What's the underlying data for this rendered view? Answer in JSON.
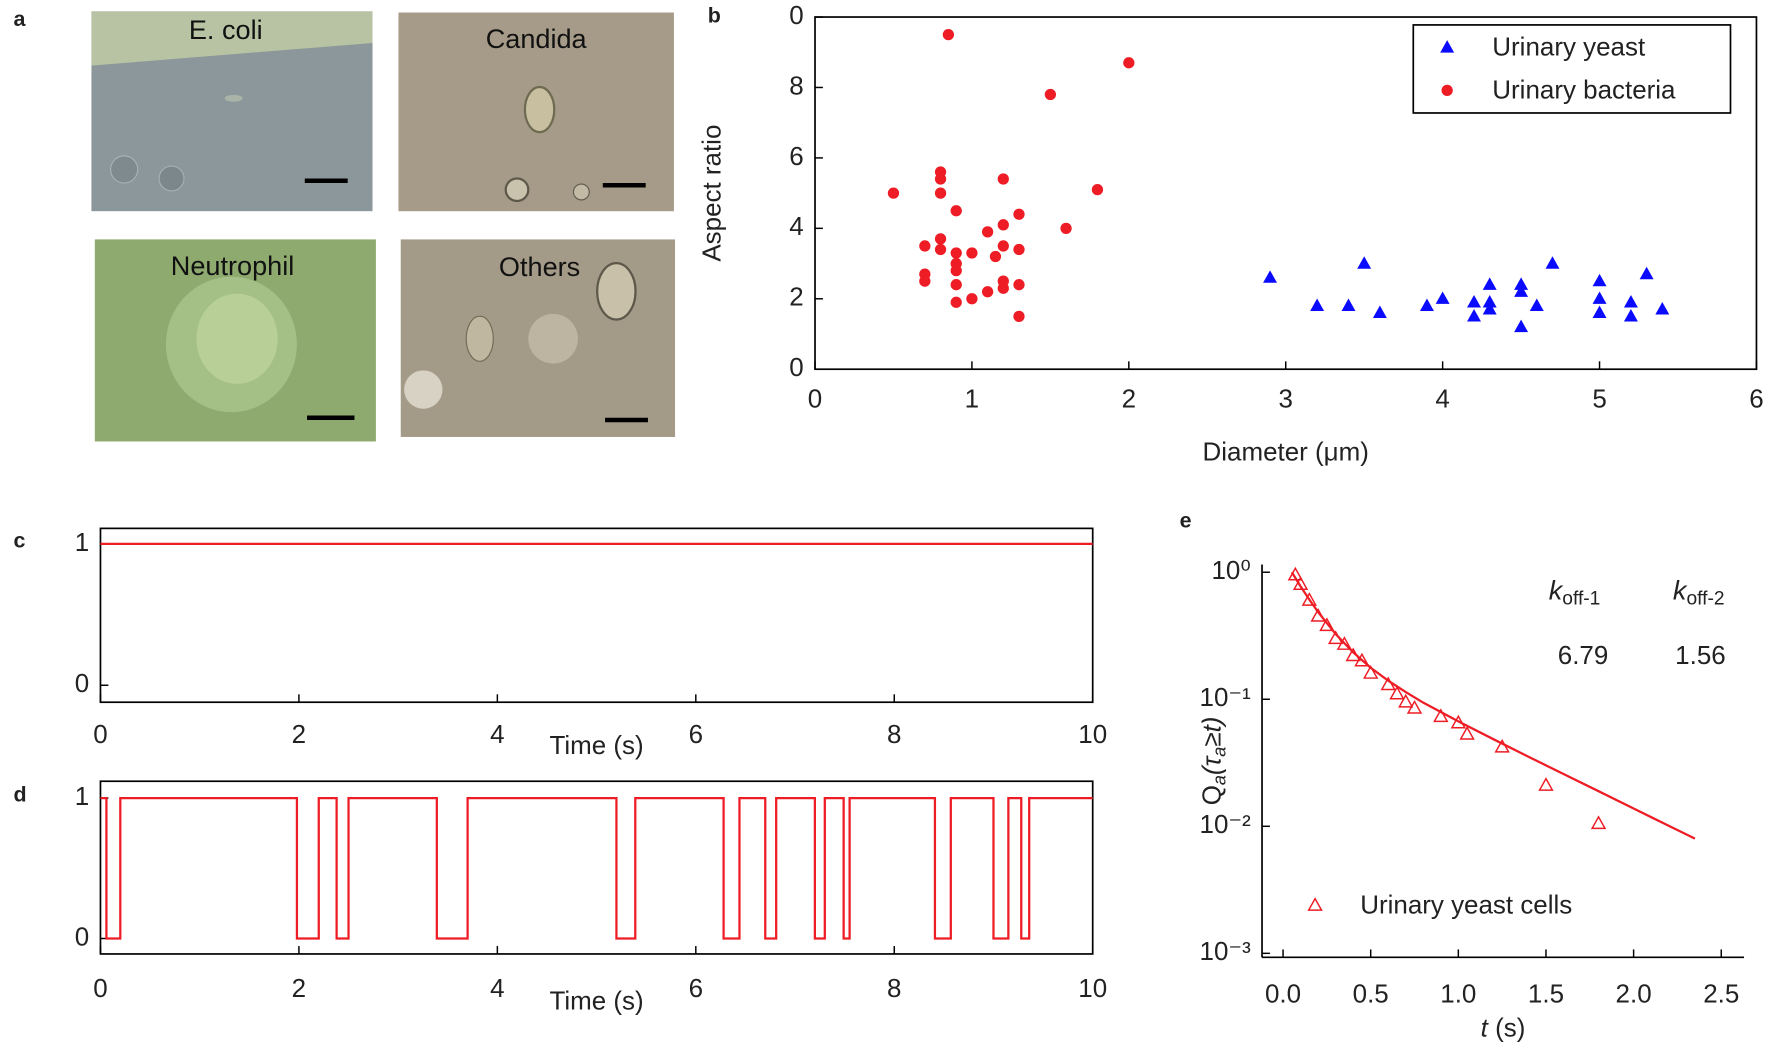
{
  "figure_a": {
    "panel": "a",
    "images": [
      "E. coli",
      "Candida",
      "Neutrophil",
      "Others"
    ]
  },
  "chart_data": [
    {
      "type": "scatter",
      "panel": "b",
      "xlabel": "Diameter (μm)",
      "ylabel": "Aspect ratio",
      "xlim": [
        0,
        6
      ],
      "xticks": [
        0,
        1,
        2,
        3,
        4,
        5,
        6
      ],
      "ylim": [
        0,
        10
      ],
      "yticks": [
        0,
        2,
        4,
        6,
        8,
        {
          "value": 10,
          "label": "0"
        }
      ],
      "legend": "upper right",
      "series": [
        {
          "name": "Urinary yeast",
          "color": "#0a0aff",
          "marker": "triangle",
          "filled": true,
          "x": [
            2.9,
            3.2,
            3.4,
            3.5,
            3.6,
            3.9,
            4.0,
            4.2,
            4.2,
            4.3,
            4.3,
            4.3,
            4.5,
            4.5,
            4.5,
            4.6,
            4.7,
            5.0,
            5.0,
            5.0,
            5.2,
            5.2,
            5.3,
            5.4
          ],
          "values": [
            2.6,
            1.8,
            1.8,
            3.0,
            1.6,
            1.8,
            2.0,
            1.9,
            1.5,
            2.4,
            1.9,
            1.7,
            2.4,
            2.2,
            1.2,
            1.8,
            3.0,
            2.5,
            2.0,
            1.6,
            1.9,
            1.5,
            2.7,
            1.7
          ]
        },
        {
          "name": "Urinary bacteria",
          "color": "#ee1c25",
          "marker": "circle",
          "filled": true,
          "x": [
            0.5,
            0.7,
            0.7,
            0.7,
            0.8,
            0.8,
            0.8,
            0.8,
            0.8,
            0.85,
            0.9,
            0.9,
            0.9,
            0.9,
            0.9,
            0.9,
            1.0,
            1.0,
            1.1,
            1.1,
            1.15,
            1.2,
            1.2,
            1.2,
            1.2,
            1.2,
            1.3,
            1.3,
            1.3,
            1.3,
            1.5,
            1.6,
            1.8,
            2.0
          ],
          "values": [
            5.0,
            3.5,
            2.7,
            2.5,
            5.6,
            5.4,
            5.0,
            3.7,
            3.4,
            9.5,
            4.5,
            3.3,
            3.0,
            2.8,
            2.4,
            1.9,
            3.3,
            2.0,
            3.9,
            2.2,
            3.2,
            5.4,
            4.1,
            3.5,
            2.5,
            2.3,
            4.4,
            3.4,
            2.4,
            1.5,
            7.8,
            4.0,
            5.1,
            8.7
          ]
        }
      ]
    },
    {
      "type": "line",
      "panel": "c",
      "xlabel": "Time (s)",
      "xlim": [
        0,
        10
      ],
      "xticks": [
        0,
        2,
        4,
        6,
        8,
        10
      ],
      "ylim": [
        -0.12,
        1.11
      ],
      "yticks": [
        0,
        1
      ],
      "series": [
        {
          "color": "#ee1c25",
          "x": [
            0,
            10
          ],
          "values": [
            1,
            1
          ]
        }
      ]
    },
    {
      "type": "line",
      "panel": "d",
      "xlabel": "Time (s)",
      "xlim": [
        0,
        10
      ],
      "xticks": [
        0,
        2,
        4,
        6,
        8,
        10
      ],
      "ylim": [
        -0.11,
        1.12
      ],
      "yticks": [
        0,
        1
      ],
      "series": [
        {
          "color": "#ee1c25",
          "x": [
            0,
            0.06,
            0.06,
            0.2,
            0.2,
            1.98,
            1.98,
            2.2,
            2.2,
            2.38,
            2.38,
            2.5,
            2.5,
            3.39,
            3.39,
            3.7,
            3.7,
            5.2,
            5.2,
            5.39,
            5.39,
            6.28,
            6.28,
            6.44,
            6.44,
            6.7,
            6.7,
            6.81,
            6.81,
            7.2,
            7.2,
            7.3,
            7.3,
            7.49,
            7.49,
            7.55,
            7.55,
            8.41,
            8.41,
            8.57,
            8.57,
            9.0,
            9.0,
            9.15,
            9.15,
            9.28,
            9.28,
            9.36,
            9.36,
            10
          ],
          "values": [
            1,
            1,
            0,
            0,
            1,
            1,
            0,
            0,
            1,
            1,
            0,
            0,
            1,
            1,
            0,
            0,
            1,
            1,
            0,
            0,
            1,
            1,
            0,
            0,
            1,
            1,
            0,
            0,
            1,
            1,
            0,
            0,
            1,
            1,
            0,
            0,
            1,
            1,
            0,
            0,
            1,
            1,
            0,
            0,
            1,
            1,
            0,
            0,
            1,
            1
          ]
        }
      ]
    },
    {
      "type": "scatter",
      "panel": "e",
      "xlabel": [
        "t",
        " (s)"
      ],
      "ylabel": [
        "Q",
        "a",
        "(τ",
        "a",
        "≥t)"
      ],
      "xlim": [
        -0.12,
        2.63
      ],
      "xticks": [
        {
          "value": 0,
          "label": "0.0"
        },
        0.5,
        {
          "value": 1,
          "label": "1.0"
        },
        1.5,
        {
          "value": 2,
          "label": "2.0"
        },
        2.5
      ],
      "ylog": true,
      "ylim": [
        0.00093,
        1.15
      ],
      "yticks": [
        {
          "value": 1,
          "label": "10⁰"
        },
        {
          "value": 0.1,
          "label": "10⁻¹"
        },
        {
          "value": 0.01,
          "label": "10⁻²"
        },
        {
          "value": 0.001,
          "label": "10⁻³"
        }
      ],
      "legend": "lower left",
      "annotation_color": "#ee1c25",
      "annotations": [
        {
          "text": [
            "k",
            "off-1"
          ],
          "value": 6.79
        },
        {
          "text": [
            "k",
            "off-2"
          ],
          "value": 1.56
        }
      ],
      "series": [
        {
          "name": "Urinary yeast cells",
          "color": "#ee1c25",
          "marker": "triangle",
          "filled": false,
          "x": [
            0.07,
            0.1,
            0.15,
            0.2,
            0.25,
            0.3,
            0.35,
            0.4,
            0.45,
            0.5,
            0.6,
            0.65,
            0.7,
            0.75,
            0.9,
            1.0,
            1.05,
            1.25,
            1.5,
            1.8
          ],
          "values": [
            0.95,
            0.8,
            0.6,
            0.45,
            0.38,
            0.3,
            0.27,
            0.22,
            0.2,
            0.16,
            0.13,
            0.11,
            0.095,
            0.085,
            0.073,
            0.065,
            0.053,
            0.042,
            0.021,
            0.0105
          ]
        },
        {
          "type": "line",
          "color": "#ee1c25",
          "x": [
            0.05,
            0.1,
            0.15,
            0.2,
            0.3,
            0.4,
            0.5,
            0.6,
            0.7,
            0.8,
            1.0,
            1.2,
            1.4,
            1.6,
            1.8,
            2.0,
            2.2,
            2.35
          ],
          "values": [
            1.0,
            0.774,
            0.608,
            0.486,
            0.326,
            0.234,
            0.177,
            0.14,
            0.114,
            0.094,
            0.067,
            0.0485,
            0.0353,
            0.0258,
            0.0189,
            0.0138,
            0.0101,
            0.008
          ]
        }
      ]
    }
  ]
}
